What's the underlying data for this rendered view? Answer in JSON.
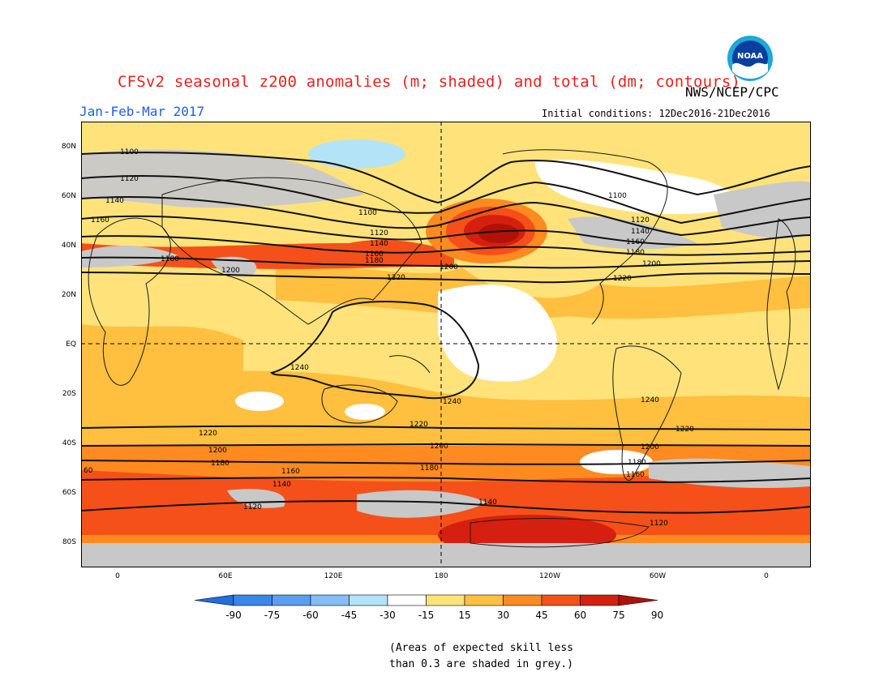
{
  "header": {
    "title": "CFSv2 seasonal z200 anomalies (m; shaded) and total (dm; contours)",
    "agency": "NWS/NCEP/CPC",
    "period": "Jan-Feb-Mar 2017",
    "initial_conditions": "Initial conditions: 12Dec2016-21Dec2016",
    "logo_text": "NOAA"
  },
  "map": {
    "lat_labels": [
      "80N",
      "60N",
      "40N",
      "20N",
      "EQ",
      "20S",
      "40S",
      "60S",
      "80S"
    ],
    "lon_labels": [
      "0",
      "60E",
      "120E",
      "180",
      "120W",
      "60W",
      "0"
    ],
    "contour_labels": [
      "1100",
      "1120",
      "1140",
      "1160",
      "1180",
      "1200",
      "1220",
      "1240",
      "60"
    ]
  },
  "colorbar": {
    "labels": [
      "-90",
      "-75",
      "-60",
      "-45",
      "-30",
      "-15",
      "15",
      "30",
      "45",
      "60",
      "75",
      "90"
    ],
    "colors": [
      "#1e6fe0",
      "#3a86ec",
      "#5a9ef2",
      "#86bdf6",
      "#b3e3f6",
      "#ffffff",
      "#ffe37a",
      "#ffbf3f",
      "#ff8a1f",
      "#f5501a",
      "#d6200f",
      "#b01208"
    ]
  },
  "footnote": {
    "line1": "(Areas of expected skill less",
    "line2": "than 0.3 are shaded in grey.)"
  }
}
